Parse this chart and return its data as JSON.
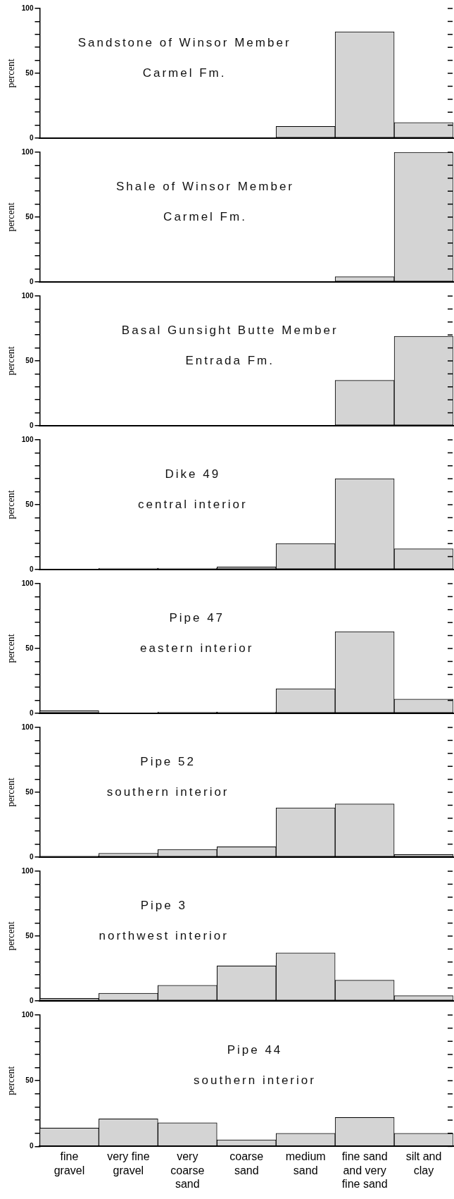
{
  "chart_data": [
    {
      "type": "bar",
      "title": "Sandstone of Winsor Member",
      "subtitle": "Carmel Fm.",
      "ylabel": "percent",
      "categories": [
        null,
        null,
        null,
        null,
        null,
        null,
        null
      ],
      "values": [
        0,
        0,
        0,
        0,
        9,
        82,
        12
      ],
      "color": "#d4d4d4",
      "ylim": [
        0,
        100
      ],
      "yticks": [
        0,
        {
          "value": 10,
          "label": null
        },
        {
          "value": 20,
          "label": null
        },
        {
          "value": 30,
          "label": null
        },
        {
          "value": 40,
          "label": null
        },
        50,
        {
          "value": 60,
          "label": null
        },
        {
          "value": 70,
          "label": null
        },
        {
          "value": 80,
          "label": null
        },
        {
          "value": 90,
          "label": null
        },
        100
      ],
      "tick_labels": "y",
      "grid": false,
      "legend": false
    },
    {
      "type": "bar",
      "title": "Shale of Winsor Member",
      "subtitle": "Carmel Fm.",
      "ylabel": "percent",
      "categories": [
        null,
        null,
        null,
        null,
        null,
        null,
        null
      ],
      "values": [
        0,
        0,
        0,
        0,
        0,
        4,
        100
      ],
      "color": "#d4d4d4",
      "ylim": [
        0,
        100
      ],
      "yticks": [
        0,
        {
          "value": 10,
          "label": null
        },
        {
          "value": 20,
          "label": null
        },
        {
          "value": 30,
          "label": null
        },
        {
          "value": 40,
          "label": null
        },
        50,
        {
          "value": 60,
          "label": null
        },
        {
          "value": 70,
          "label": null
        },
        {
          "value": 80,
          "label": null
        },
        {
          "value": 90,
          "label": null
        },
        100
      ],
      "tick_labels": "y",
      "grid": false,
      "legend": false
    },
    {
      "type": "bar",
      "title": "Basal Gunsight Butte Member",
      "subtitle": "Entrada Fm.",
      "ylabel": "percent",
      "categories": [
        null,
        null,
        null,
        null,
        null,
        null,
        null
      ],
      "values": [
        0,
        0,
        0,
        0,
        0,
        35,
        69
      ],
      "color": "#d4d4d4",
      "ylim": [
        0,
        100
      ],
      "yticks": [
        0,
        {
          "value": 10,
          "label": null
        },
        {
          "value": 20,
          "label": null
        },
        {
          "value": 30,
          "label": null
        },
        {
          "value": 40,
          "label": null
        },
        50,
        {
          "value": 60,
          "label": null
        },
        {
          "value": 70,
          "label": null
        },
        {
          "value": 80,
          "label": null
        },
        {
          "value": 90,
          "label": null
        },
        100
      ],
      "tick_labels": "y",
      "grid": false,
      "legend": false
    },
    {
      "type": "bar",
      "title": "Dike 49",
      "subtitle": "central interior",
      "ylabel": "percent",
      "categories": [
        null,
        null,
        null,
        null,
        null,
        null,
        null
      ],
      "values": [
        0,
        1,
        1,
        2,
        20,
        70,
        16
      ],
      "color": "#d4d4d4",
      "ylim": [
        0,
        100
      ],
      "yticks": [
        0,
        {
          "value": 10,
          "label": null
        },
        {
          "value": 20,
          "label": null
        },
        {
          "value": 30,
          "label": null
        },
        {
          "value": 40,
          "label": null
        },
        50,
        {
          "value": 60,
          "label": null
        },
        {
          "value": 70,
          "label": null
        },
        {
          "value": 80,
          "label": null
        },
        {
          "value": 90,
          "label": null
        },
        100
      ],
      "tick_labels": "y",
      "grid": false,
      "legend": false
    },
    {
      "type": "bar",
      "title": "Pipe 47",
      "subtitle": "eastern interior",
      "ylabel": "percent",
      "categories": [
        null,
        null,
        null,
        null,
        null,
        null,
        null
      ],
      "values": [
        2,
        0,
        1,
        1,
        19,
        63,
        11
      ],
      "color": "#d4d4d4",
      "ylim": [
        0,
        100
      ],
      "yticks": [
        0,
        {
          "value": 10,
          "label": null
        },
        {
          "value": 20,
          "label": null
        },
        {
          "value": 30,
          "label": null
        },
        {
          "value": 40,
          "label": null
        },
        50,
        {
          "value": 60,
          "label": null
        },
        {
          "value": 70,
          "label": null
        },
        {
          "value": 80,
          "label": null
        },
        {
          "value": 90,
          "label": null
        },
        100
      ],
      "tick_labels": "y",
      "grid": false,
      "legend": false
    },
    {
      "type": "bar",
      "title": "Pipe 52",
      "subtitle": "southern interior",
      "ylabel": "percent",
      "categories": [
        null,
        null,
        null,
        null,
        null,
        null,
        null
      ],
      "values": [
        1,
        3,
        6,
        8,
        38,
        41,
        2
      ],
      "color": "#d4d4d4",
      "ylim": [
        0,
        100
      ],
      "yticks": [
        0,
        {
          "value": 10,
          "label": null
        },
        {
          "value": 20,
          "label": null
        },
        {
          "value": 30,
          "label": null
        },
        {
          "value": 40,
          "label": null
        },
        50,
        {
          "value": 60,
          "label": null
        },
        {
          "value": 70,
          "label": null
        },
        {
          "value": 80,
          "label": null
        },
        {
          "value": 90,
          "label": null
        },
        100
      ],
      "tick_labels": "y",
      "grid": false,
      "legend": false
    },
    {
      "type": "bar",
      "title": "Pipe 3",
      "subtitle": "northwest interior",
      "ylabel": "percent",
      "categories": [
        null,
        null,
        null,
        null,
        null,
        null,
        null
      ],
      "values": [
        2,
        6,
        12,
        27,
        37,
        16,
        4
      ],
      "color": "#d4d4d4",
      "ylim": [
        0,
        100
      ],
      "yticks": [
        0,
        {
          "value": 10,
          "label": null
        },
        {
          "value": 20,
          "label": null
        },
        {
          "value": 30,
          "label": null
        },
        {
          "value": 40,
          "label": null
        },
        50,
        {
          "value": 60,
          "label": null
        },
        {
          "value": 70,
          "label": null
        },
        {
          "value": 80,
          "label": null
        },
        {
          "value": 90,
          "label": null
        },
        100
      ],
      "tick_labels": "y",
      "grid": false,
      "legend": false
    },
    {
      "type": "bar",
      "title": "Pipe 44",
      "subtitle": "southern interior",
      "ylabel": "percent",
      "categories": [
        "fine gravel",
        "very fine gravel",
        "very coarse sand",
        "coarse sand",
        "medium sand",
        "fine sand and very fine sand",
        "silt and clay"
      ],
      "values": [
        14,
        21,
        18,
        5,
        10,
        22,
        10
      ],
      "color": "#d4d4d4",
      "ylim": [
        0,
        100
      ],
      "yticks": [
        0,
        {
          "value": 10,
          "label": null
        },
        {
          "value": 20,
          "label": null
        },
        {
          "value": 30,
          "label": null
        },
        {
          "value": 40,
          "label": null
        },
        50,
        {
          "value": 60,
          "label": null
        },
        {
          "value": 70,
          "label": null
        },
        {
          "value": 80,
          "label": null
        },
        {
          "value": 90,
          "label": null
        },
        100
      ],
      "grid": false,
      "legend": false
    }
  ]
}
